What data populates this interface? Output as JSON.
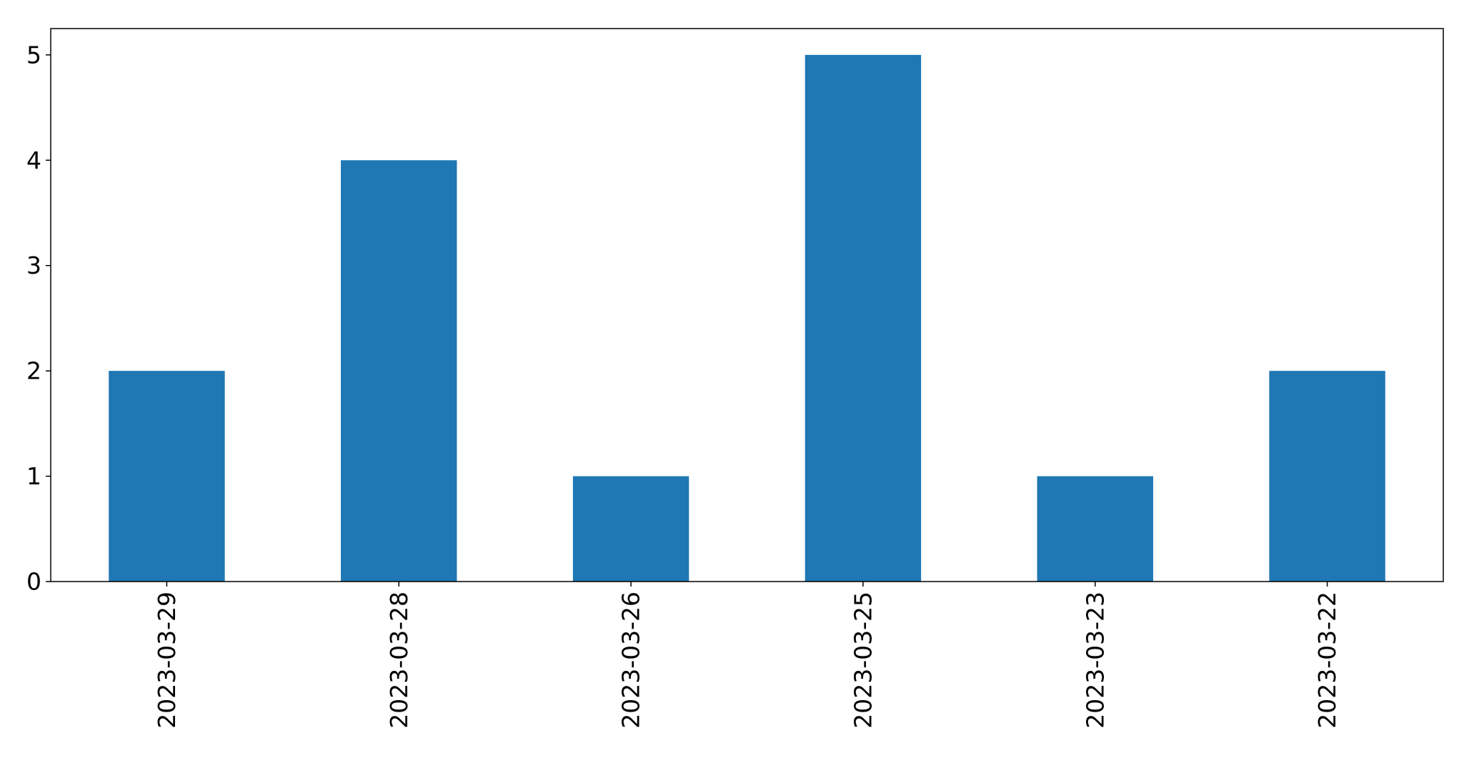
{
  "chart_data": {
    "type": "bar",
    "title": "",
    "xlabel": "",
    "ylabel": "",
    "categories": [
      "2023-03-29",
      "2023-03-28",
      "2023-03-26",
      "2023-03-25",
      "2023-03-23",
      "2023-03-22"
    ],
    "values": [
      2,
      4,
      1,
      5,
      1,
      2
    ],
    "ylim": [
      0,
      5.25
    ],
    "yticks": [
      0,
      1,
      2,
      3,
      4,
      5
    ],
    "bar_color": "#1f77b4",
    "grid": false,
    "legend": "none"
  }
}
